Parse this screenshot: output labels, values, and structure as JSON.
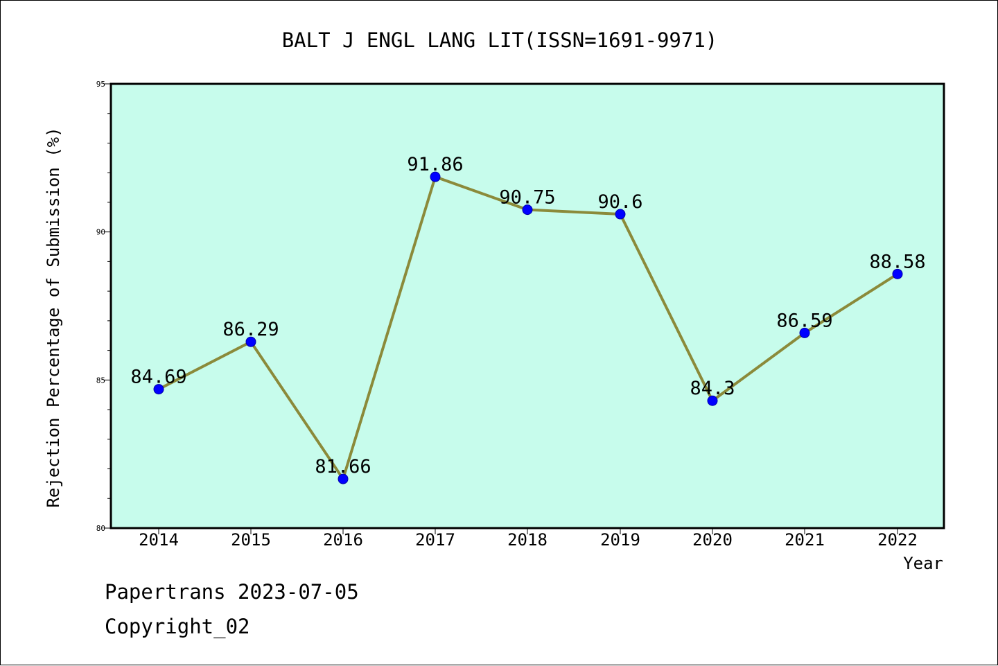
{
  "chart_data": {
    "type": "line",
    "title": "BALT J ENGL LANG LIT(ISSN=1691-9971)",
    "xlabel": "Year",
    "ylabel": "Rejection Percentage of Submission (%)",
    "categories": [
      "2014",
      "2015",
      "2016",
      "2017",
      "2018",
      "2019",
      "2020",
      "2021",
      "2022"
    ],
    "series": [
      {
        "values": [
          84.69,
          86.29,
          81.66,
          91.86,
          90.75,
          90.6,
          84.3,
          86.59,
          88.58
        ],
        "labels": [
          "84.69",
          "86.29",
          "81.66",
          "91.86",
          "90.75",
          "90.6",
          "84.3",
          "86.59",
          "88.58"
        ],
        "color": "#8b8a3a",
        "marker_color": "#0000ff"
      }
    ],
    "ylim": [
      80,
      95
    ],
    "yticks": [
      80,
      85,
      90,
      95
    ],
    "yticks_minor_step": 1,
    "grid": false,
    "plot_background": "#c7fcec"
  },
  "footer": {
    "line1": "Papertrans 2023-07-05",
    "line2": "Copyright_02"
  }
}
